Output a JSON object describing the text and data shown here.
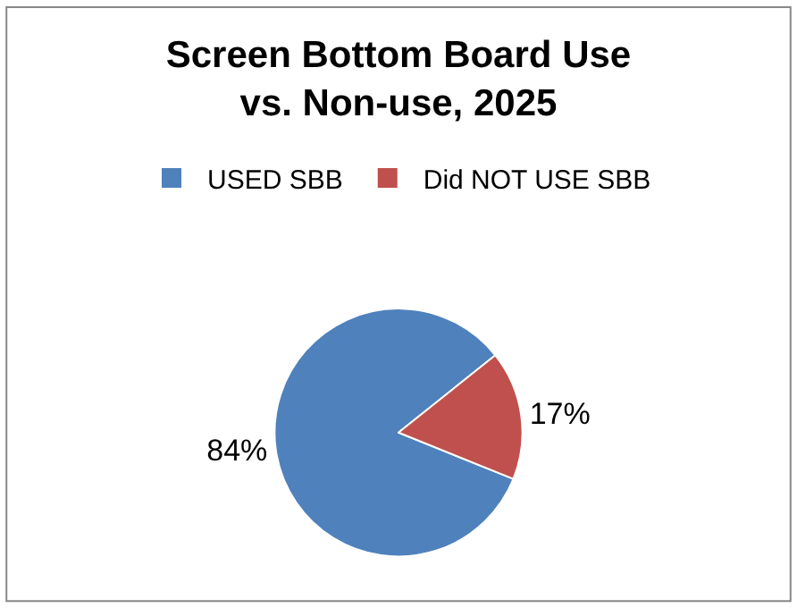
{
  "chart_data": {
    "type": "pie",
    "title": "Screen Bottom Board Use\nvs. Non-use, 2025",
    "categories": [
      "USED SBB",
      "Did NOT USE SBB"
    ],
    "values": [
      84,
      17
    ],
    "colors": [
      "#4f81bd",
      "#c0504d"
    ],
    "value_labels": [
      "84%",
      "17%"
    ],
    "legend": "top"
  }
}
